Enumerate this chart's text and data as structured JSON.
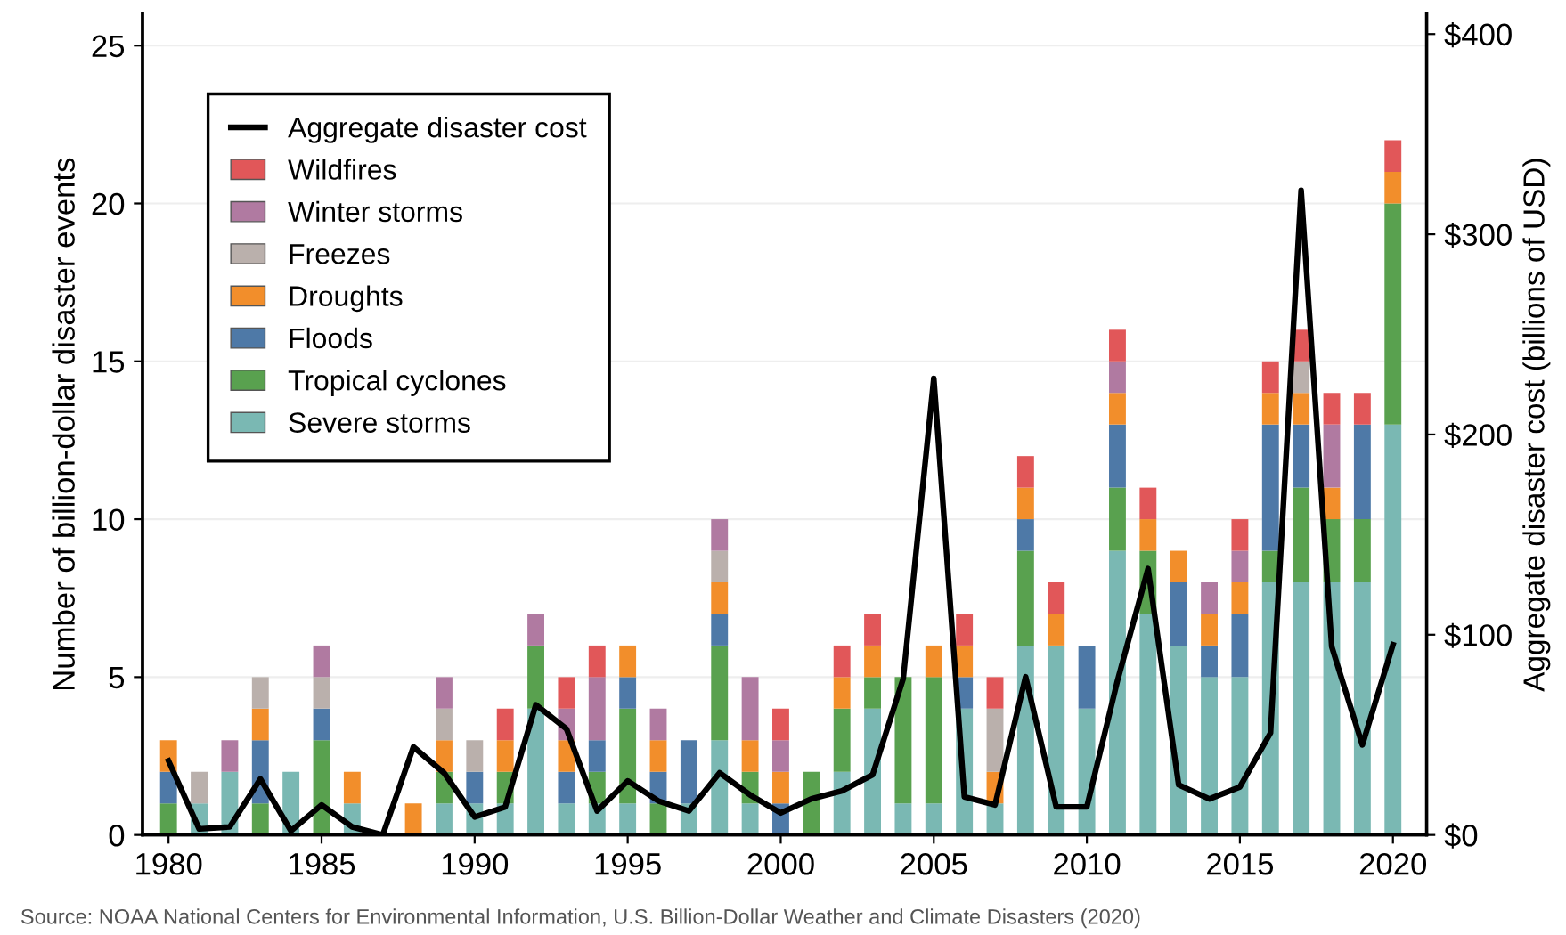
{
  "chart_data": {
    "type": "bar",
    "stacked": true,
    "x": [
      1980,
      1981,
      1982,
      1983,
      1984,
      1985,
      1986,
      1987,
      1988,
      1989,
      1990,
      1991,
      1992,
      1993,
      1994,
      1995,
      1996,
      1997,
      1998,
      1999,
      2000,
      2001,
      2002,
      2003,
      2004,
      2005,
      2006,
      2007,
      2008,
      2009,
      2010,
      2011,
      2012,
      2013,
      2014,
      2015,
      2016,
      2017,
      2018,
      2019,
      2020
    ],
    "series": [
      {
        "name": "Severe storms",
        "color": "#7ab8b3",
        "values": [
          0,
          1,
          2,
          0,
          2,
          0,
          1,
          0,
          0,
          1,
          1,
          1,
          4,
          1,
          1,
          1,
          0,
          1,
          3,
          1,
          0,
          0,
          2,
          4,
          1,
          1,
          4,
          1,
          6,
          6,
          4,
          9,
          7,
          6,
          5,
          5,
          8,
          8,
          8,
          8,
          13
        ]
      },
      {
        "name": "Tropical cyclones",
        "color": "#59a14f",
        "values": [
          1,
          0,
          0,
          1,
          0,
          3,
          0,
          0,
          0,
          1,
          0,
          1,
          2,
          0,
          1,
          3,
          1,
          0,
          3,
          1,
          0,
          2,
          2,
          1,
          4,
          4,
          0,
          0,
          3,
          0,
          0,
          2,
          2,
          0,
          0,
          0,
          1,
          3,
          2,
          2,
          7
        ]
      },
      {
        "name": "Floods",
        "color": "#4e79a7",
        "values": [
          1,
          0,
          0,
          2,
          0,
          1,
          0,
          0,
          0,
          0,
          1,
          0,
          0,
          1,
          1,
          1,
          1,
          2,
          1,
          0,
          1,
          0,
          0,
          0,
          0,
          0,
          1,
          0,
          1,
          0,
          2,
          2,
          0,
          2,
          1,
          2,
          4,
          2,
          0,
          3,
          0
        ]
      },
      {
        "name": "Droughts",
        "color": "#f28e2b",
        "values": [
          1,
          0,
          0,
          1,
          0,
          0,
          1,
          0,
          1,
          1,
          0,
          1,
          0,
          1,
          0,
          1,
          1,
          0,
          1,
          1,
          1,
          0,
          1,
          1,
          0,
          1,
          1,
          1,
          1,
          1,
          0,
          1,
          1,
          1,
          1,
          1,
          1,
          1,
          1,
          0,
          1
        ]
      },
      {
        "name": "Freezes",
        "color": "#bab0ac",
        "values": [
          0,
          1,
          0,
          1,
          0,
          1,
          0,
          0,
          0,
          1,
          1,
          0,
          0,
          0,
          0,
          0,
          0,
          0,
          1,
          0,
          0,
          0,
          0,
          0,
          0,
          0,
          0,
          2,
          0,
          0,
          0,
          0,
          0,
          0,
          0,
          0,
          0,
          1,
          0,
          0,
          0
        ]
      },
      {
        "name": "Winter storms",
        "color": "#b07aa1",
        "values": [
          0,
          0,
          1,
          0,
          0,
          1,
          0,
          0,
          0,
          1,
          0,
          0,
          1,
          1,
          2,
          0,
          1,
          0,
          1,
          2,
          1,
          0,
          0,
          0,
          0,
          0,
          0,
          0,
          0,
          0,
          0,
          1,
          0,
          0,
          1,
          1,
          0,
          0,
          2,
          0,
          0
        ]
      },
      {
        "name": "Wildfires",
        "color": "#e15759",
        "values": [
          0,
          0,
          0,
          0,
          0,
          0,
          0,
          0,
          0,
          0,
          0,
          1,
          0,
          1,
          1,
          0,
          0,
          0,
          0,
          0,
          1,
          0,
          1,
          1,
          0,
          0,
          1,
          1,
          1,
          1,
          0,
          1,
          1,
          0,
          0,
          1,
          1,
          1,
          1,
          1,
          1
        ]
      },
      {
        "name": "Aggregate disaster cost",
        "type": "line",
        "axis": "y2",
        "color": "#000000",
        "values": [
          37,
          3,
          4,
          28,
          2,
          15,
          4,
          0,
          44,
          31,
          9,
          14,
          65,
          53,
          12,
          27,
          17,
          12,
          31,
          20,
          11,
          18,
          22,
          30,
          78,
          228,
          19,
          15,
          79,
          14,
          14,
          77,
          133,
          25,
          18,
          24,
          51,
          322,
          94,
          45,
          95
        ]
      }
    ],
    "ylabel": "Number of billion-dollar disaster events",
    "y2label": "Aggregate disaster cost (billions of USD)",
    "xlim": [
      1979.15,
      2021.1
    ],
    "xticks": [
      1980,
      1985,
      1990,
      1995,
      2000,
      2005,
      2010,
      2015,
      2020
    ],
    "ylim": [
      0,
      26
    ],
    "yticks": [
      0,
      5,
      10,
      15,
      20,
      25
    ],
    "y2lim": [
      0,
      410
    ],
    "y2ticks": [
      {
        "value": 0,
        "label": "$0"
      },
      {
        "value": 100,
        "label": "$100"
      },
      {
        "value": 200,
        "label": "$200"
      },
      {
        "value": 300,
        "label": "$300"
      },
      {
        "value": 400,
        "label": "$400"
      }
    ],
    "grid": "y",
    "legend": "top left",
    "annotations": [
      "Source: NOAA National Centers for Environmental Information, U.S. Billion-Dollar Weather and Climate Disasters (2020)"
    ]
  }
}
